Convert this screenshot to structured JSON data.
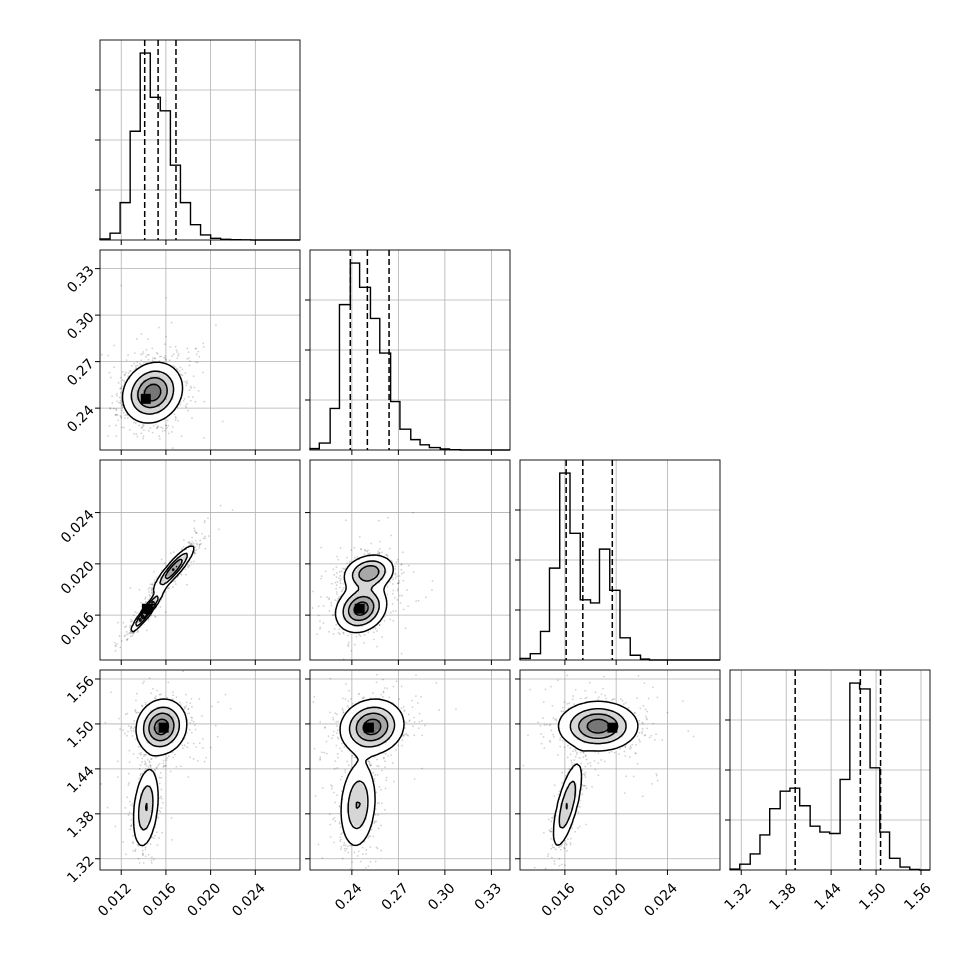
{
  "chart_data": {
    "type": "corner",
    "quantiles_shown": true,
    "grid": true,
    "params": [
      {
        "id": "p1",
        "range": [
          0.0101,
          0.028
        ],
        "ticks": [
          0.012,
          0.016,
          0.02,
          0.024
        ],
        "tick_labels": [
          "0.012",
          "0.016",
          "0.020",
          "0.024"
        ],
        "quantiles": [
          0.0141,
          0.0153,
          0.0169
        ],
        "hist": {
          "edges": [
            0.0101,
            0.011,
            0.0119,
            0.0128,
            0.0137,
            0.0146,
            0.0155,
            0.0164,
            0.0173,
            0.0182,
            0.0191,
            0.02,
            0.0209,
            0.0218,
            0.0227,
            0.0236,
            0.0245,
            0.0254,
            0.0263,
            0.0272,
            0.028
          ],
          "counts": [
            0.3,
            2.0,
            11.0,
            32.0,
            55.0,
            42.0,
            38.0,
            22.0,
            11.0,
            4.5,
            1.5,
            0.5,
            0.2,
            0.1,
            0.05,
            0,
            0,
            0,
            0,
            0
          ]
        }
      },
      {
        "id": "p2",
        "range": [
          0.213,
          0.342
        ],
        "ticks": [
          0.24,
          0.27,
          0.3,
          0.33
        ],
        "tick_labels": [
          "0.24",
          "0.27",
          "0.30",
          "0.33"
        ],
        "quantiles": [
          0.239,
          0.25,
          0.264
        ],
        "hist": {
          "edges": [
            0.213,
            0.219,
            0.226,
            0.232,
            0.239,
            0.245,
            0.252,
            0.258,
            0.265,
            0.271,
            0.278,
            0.284,
            0.29,
            0.297,
            0.303,
            0.31,
            0.316,
            0.323,
            0.329,
            0.336,
            0.342
          ],
          "counts": [
            0.4,
            2.0,
            12.0,
            42.0,
            54.0,
            47.0,
            38.0,
            28.0,
            14.0,
            6.0,
            3.0,
            1.5,
            0.7,
            0.3,
            0.1,
            0,
            0,
            0,
            0,
            0
          ]
        }
      },
      {
        "id": "p3",
        "range": [
          0.0125,
          0.0281
        ],
        "ticks": [
          0.016,
          0.02,
          0.024
        ],
        "tick_labels": [
          "0.016",
          "0.020",
          "0.024"
        ],
        "quantiles": [
          0.0161,
          0.0174,
          0.0197
        ],
        "hist": {
          "edges": [
            0.0125,
            0.0133,
            0.0141,
            0.0148,
            0.0156,
            0.0164,
            0.0172,
            0.018,
            0.0187,
            0.0195,
            0.0203,
            0.0211,
            0.0219,
            0.0226,
            0.0234,
            0.0242,
            0.025,
            0.0258,
            0.0265,
            0.0273,
            0.0281
          ],
          "counts": [
            0.5,
            2.0,
            9.0,
            29.0,
            59.0,
            40.0,
            19.0,
            18.0,
            35.0,
            22.0,
            7.0,
            1.5,
            0.3,
            0,
            0,
            0,
            0,
            0,
            0,
            0
          ]
        }
      },
      {
        "id": "p4",
        "range": [
          1.305,
          1.572
        ],
        "ticks": [
          1.32,
          1.38,
          1.44,
          1.5,
          1.56
        ],
        "tick_labels": [
          "1.32",
          "1.38",
          "1.44",
          "1.50",
          "1.56"
        ],
        "quantiles": [
          1.392,
          1.479,
          1.506
        ],
        "hist": {
          "edges": [
            1.305,
            1.318,
            1.332,
            1.345,
            1.358,
            1.372,
            1.385,
            1.398,
            1.412,
            1.425,
            1.438,
            1.452,
            1.465,
            1.478,
            1.492,
            1.505,
            1.518,
            1.532,
            1.545,
            1.558,
            1.572
          ],
          "counts": [
            0.3,
            2.0,
            5.5,
            12.0,
            21.0,
            27.0,
            28.0,
            22.0,
            15.0,
            13.0,
            12.5,
            31.0,
            64.0,
            62.0,
            35.0,
            13.0,
            4.0,
            1.0,
            0.2,
            0
          ]
        }
      }
    ],
    "pairs": [
      {
        "x": "p1",
        "y": "p2",
        "peak": [
          0.0142,
          0.246
        ],
        "blobs": [
          {
            "c": [
              0.0148,
              0.25
            ],
            "s": [
              0.0013,
              0.0095
            ],
            "rho": 0.15,
            "w": 1.0
          }
        ]
      },
      {
        "x": "p1",
        "y": "p3",
        "peak": [
          0.0143,
          0.0165
        ],
        "blobs": [
          {
            "c": [
              0.0143,
              0.0163
            ],
            "s": [
              0.0007,
              0.0008
            ],
            "rho": 0.95,
            "w": 0.55
          },
          {
            "c": [
              0.0167,
              0.0196
            ],
            "s": [
              0.0009,
              0.0009
            ],
            "rho": 0.9,
            "w": 0.45
          }
        ]
      },
      {
        "x": "p1",
        "y": "p4",
        "peak": [
          0.0158,
          1.495
        ],
        "blobs": [
          {
            "c": [
              0.0156,
              1.496
            ],
            "s": [
              0.0011,
              0.018
            ],
            "rho": 0.1,
            "w": 0.62
          },
          {
            "c": [
              0.0142,
              1.388
            ],
            "s": [
              0.0006,
              0.028
            ],
            "rho": 0.3,
            "w": 0.38
          }
        ]
      },
      {
        "x": "p2",
        "y": "p3",
        "peak": [
          0.245,
          0.0165
        ],
        "blobs": [
          {
            "c": [
              0.246,
              0.0165
            ],
            "s": [
              0.008,
              0.0009
            ],
            "rho": 0.2,
            "w": 0.55
          },
          {
            "c": [
              0.251,
              0.0193
            ],
            "s": [
              0.008,
              0.0007
            ],
            "rho": 0.2,
            "w": 0.45
          }
        ]
      },
      {
        "x": "p2",
        "y": "p4",
        "peak": [
          0.251,
          1.495
        ],
        "blobs": [
          {
            "c": [
              0.253,
              1.496
            ],
            "s": [
              0.01,
              0.018
            ],
            "rho": 0.1,
            "w": 0.62
          },
          {
            "c": [
              0.244,
              1.392
            ],
            "s": [
              0.006,
              0.03
            ],
            "rho": 0.15,
            "w": 0.38
          }
        ]
      },
      {
        "x": "p3",
        "y": "p4",
        "peak": [
          0.0197,
          1.495
        ],
        "blobs": [
          {
            "c": [
              0.0186,
              1.497
            ],
            "s": [
              0.0015,
              0.016
            ],
            "rho": 0.0,
            "w": 0.62
          },
          {
            "c": [
              0.0162,
              1.392
            ],
            "s": [
              0.0006,
              0.03
            ],
            "rho": 0.7,
            "w": 0.38
          }
        ]
      }
    ]
  }
}
